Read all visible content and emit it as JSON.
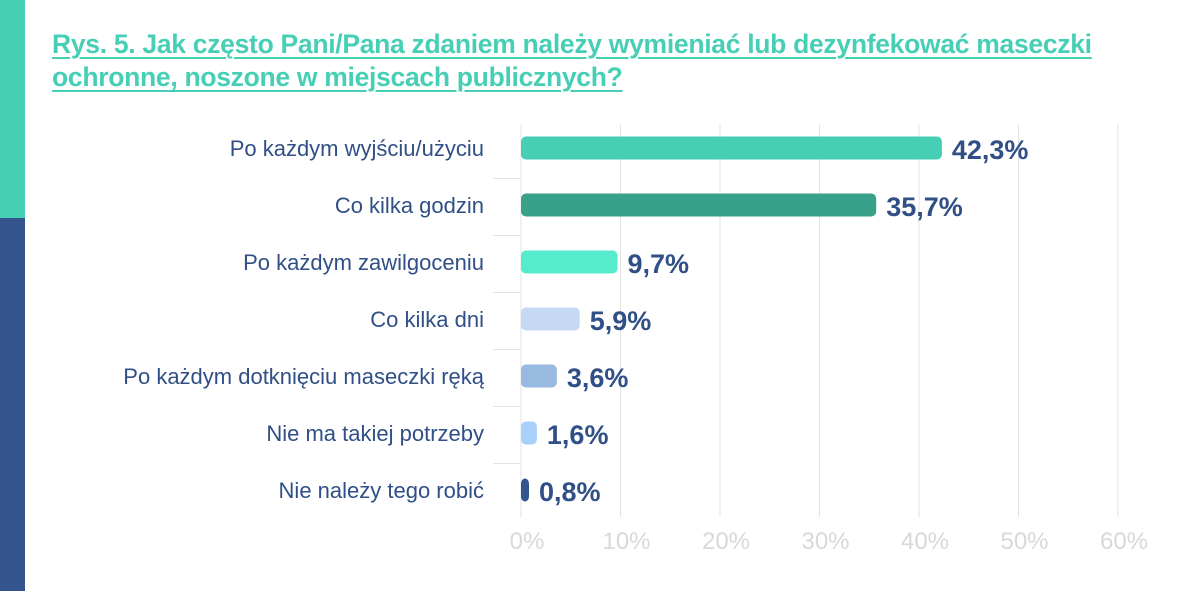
{
  "chart_data": {
    "type": "bar",
    "orientation": "horizontal",
    "title": "Rys. 5. Jak często Pani/Pana zdaniem należy wymieniać lub dezynfekować maseczki ochronne, noszone w miejscach publicznych?",
    "categories": [
      "Po każdym wyjściu/użyciu",
      "Co kilka godzin",
      "Po każdym zawilgoceniu",
      "Co kilka dni",
      "Po każdym dotknięciu maseczki ręką",
      "Nie ma takiej potrzeby",
      "Nie należy tego robić"
    ],
    "values": [
      42.3,
      35.7,
      9.7,
      5.9,
      3.6,
      1.6,
      0.8
    ],
    "data_labels": [
      "42,3%",
      "35,7%",
      "9,7%",
      "5,9%",
      "3,6%",
      "1,6%",
      "0,8%"
    ],
    "colors": [
      "#47cfb5",
      "#39a08a",
      "#55eccd",
      "#c5d9f5",
      "#98b9e0",
      "#a9d0fb",
      "#33548c"
    ],
    "xlim": [
      0,
      60
    ],
    "x_ticks": [
      "0%",
      "10%",
      "20%",
      "30%",
      "40%",
      "50%",
      "60%"
    ],
    "xlabel": "",
    "ylabel": "",
    "grid": true
  },
  "colors": {
    "accent": "#47cfb5",
    "navy": "#33548c",
    "label": "#2f4f86",
    "tick": "#d8d8d8"
  }
}
